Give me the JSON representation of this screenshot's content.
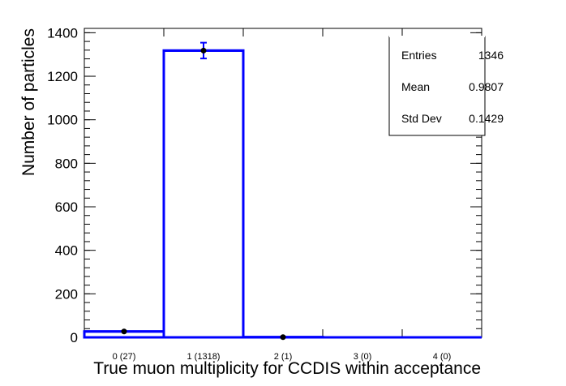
{
  "chart_data": {
    "type": "bar",
    "categories": [
      "0 (27)",
      "1 (1318)",
      "2 (1)",
      "3 (0)",
      "4 (0)"
    ],
    "values": [
      27,
      1318,
      1,
      0,
      0
    ],
    "errors": [
      5.2,
      36.3,
      1,
      0,
      0
    ],
    "ylabel": "Number of particles",
    "xlabel": "True muon multiplicity for CCDIS within acceptance",
    "ylim": [
      0,
      1420
    ],
    "yticks": [
      0,
      200,
      400,
      600,
      800,
      1000,
      1200,
      1400
    ],
    "ytick_labels": [
      "0",
      "200",
      "400",
      "600",
      "800",
      "1000",
      "1200",
      "1400"
    ],
    "style": "histogram-outline",
    "color": "#0000ff",
    "marker_color": "#000000",
    "stats": [
      {
        "label": "Entries",
        "value": "1346"
      },
      {
        "label": "Mean",
        "value": "0.9807"
      },
      {
        "label": "Std Dev",
        "value": "0.1429"
      }
    ]
  }
}
